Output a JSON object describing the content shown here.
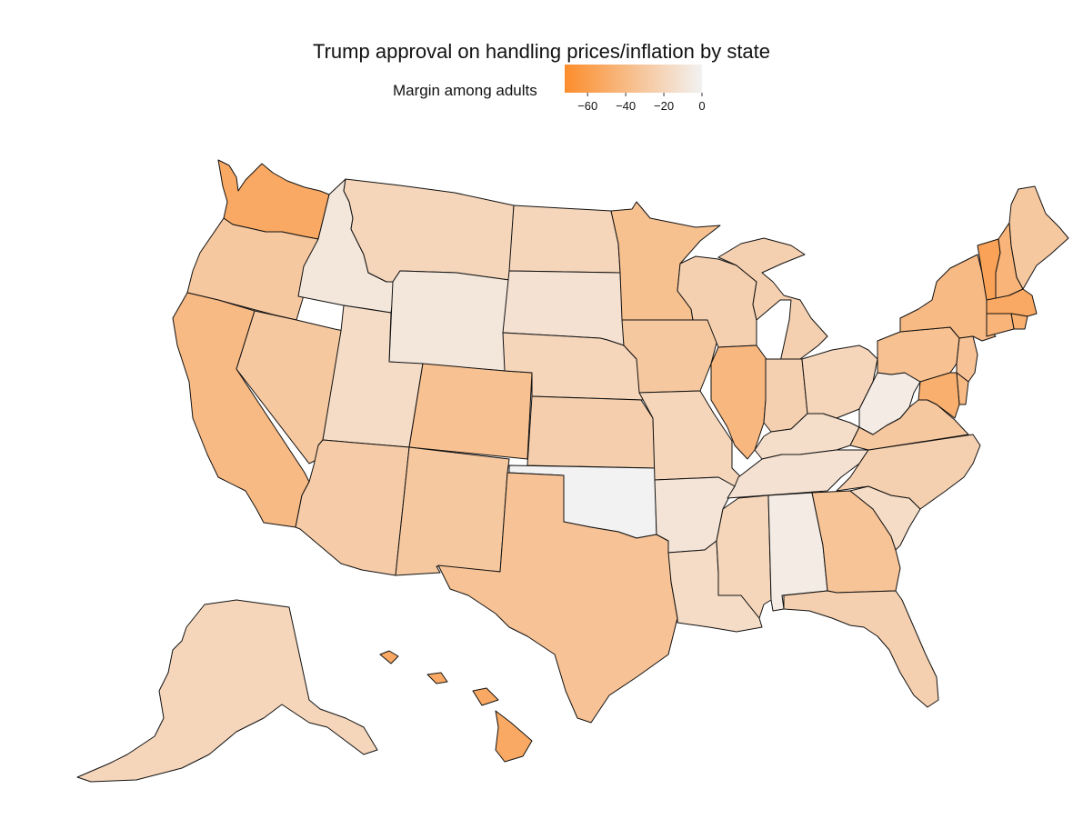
{
  "title": "Trump approval on handling prices/inflation by state",
  "legend": {
    "title": "Margin among adults",
    "range": [
      -72,
      0
    ],
    "ticks": [
      -60,
      -40,
      -20,
      0
    ],
    "tick_labels": [
      "−60",
      "−40",
      "−20",
      "0"
    ],
    "color_low": "#fc8d2c",
    "color_high": "#f2f2f2"
  },
  "map_data": {
    "type": "choropleth",
    "region": "United States",
    "values": {
      "WA": -52,
      "OR": -30,
      "CA": -40,
      "NV": -30,
      "ID": -8,
      "MT": -20,
      "WY": -8,
      "UT": -16,
      "AZ": -27,
      "CO": -35,
      "NM": -30,
      "ND": -20,
      "SD": -12,
      "NE": -20,
      "KS": -25,
      "OK": 0,
      "TX": -34,
      "MN": -36,
      "IA": -30,
      "MO": -20,
      "AR": -10,
      "LA": -16,
      "WI": -24,
      "IL": -42,
      "MI": -24,
      "IN": -24,
      "OH": -20,
      "KY": -15,
      "TN": -12,
      "MS": -20,
      "AL": -5,
      "GA": -33,
      "FL": -24,
      "SC": -16,
      "NC": -24,
      "VA": -30,
      "WV": -5,
      "PA": -35,
      "NY": -40,
      "VT": -56,
      "NH": -44,
      "ME": -30,
      "MA": -52,
      "RI": -48,
      "CT": -44,
      "NJ": -34,
      "DE": -40,
      "MD": -48,
      "AK": -20,
      "HI": -52
    }
  }
}
